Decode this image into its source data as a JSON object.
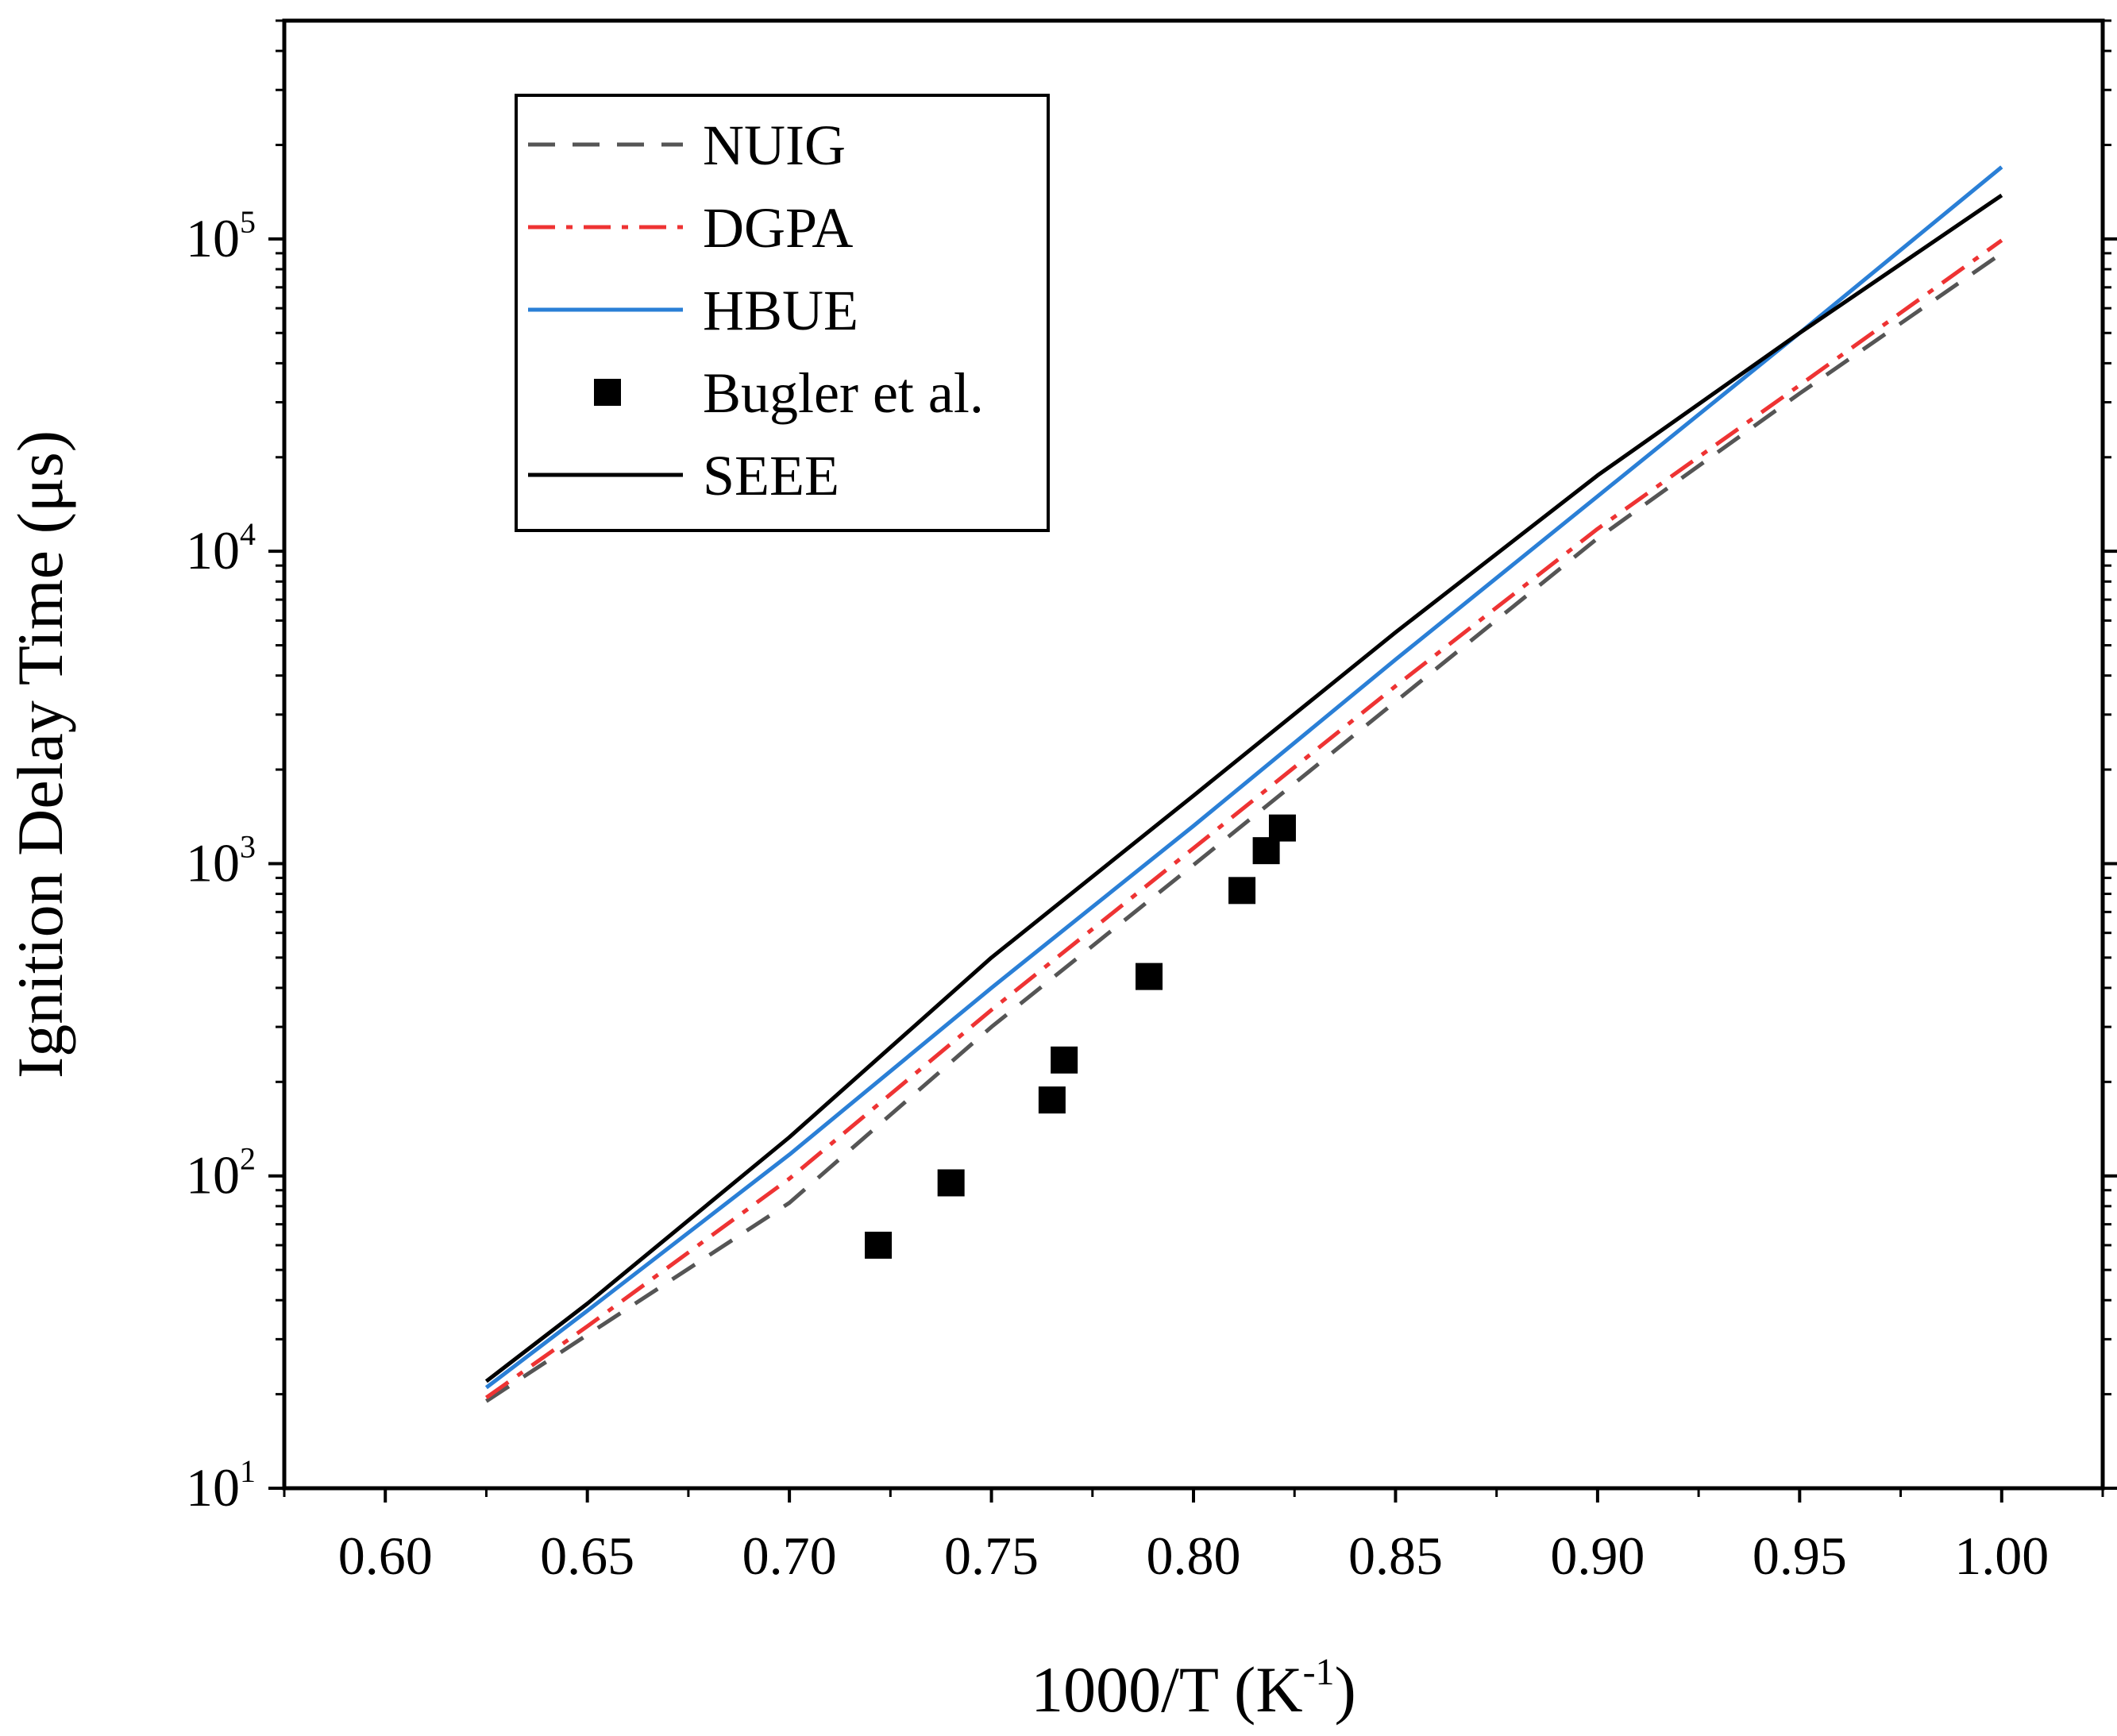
{
  "chart_data": {
    "type": "line",
    "xlabel": "1000/T (K",
    "xlabel_sup": "-1",
    "xlabel_close": ")",
    "ylabel": "Ignition Delay Time (μs)",
    "xlim": [
      0.575,
      1.025
    ],
    "ylim": [
      10,
      500000
    ],
    "yscale": "log",
    "x_ticks": [
      "0.60",
      "0.65",
      "0.70",
      "0.75",
      "0.80",
      "0.85",
      "0.90",
      "0.95",
      "1.00"
    ],
    "x_tick_values": [
      0.6,
      0.65,
      0.7,
      0.75,
      0.8,
      0.85,
      0.9,
      0.95,
      1.0
    ],
    "y_ticks": [
      {
        "value": 10,
        "base": "10",
        "exp": "1"
      },
      {
        "value": 100,
        "base": "10",
        "exp": "2"
      },
      {
        "value": 1000,
        "base": "10",
        "exp": "3"
      },
      {
        "value": 10000,
        "base": "10",
        "exp": "4"
      },
      {
        "value": 100000,
        "base": "10",
        "exp": "5"
      }
    ],
    "legend_position": "top-left",
    "series": [
      {
        "name": "NUIG",
        "style": "dash",
        "color": "#555555",
        "x": [
          0.625,
          0.65,
          0.7,
          0.75,
          0.8,
          0.85,
          0.9,
          0.95,
          1.0
        ],
        "y": [
          19,
          31,
          82,
          300,
          990,
          3300,
          11000,
          32000,
          90000
        ]
      },
      {
        "name": "DGPA",
        "style": "dashdot",
        "color": "#ee3333",
        "x": [
          0.625,
          0.65,
          0.7,
          0.75,
          0.8,
          0.85,
          0.9,
          0.95,
          1.0
        ],
        "y": [
          19.5,
          33,
          98,
          340,
          1120,
          3700,
          11800,
          34000,
          99000
        ]
      },
      {
        "name": "HBUE",
        "style": "solid",
        "color": "#2a7fd6",
        "x": [
          0.625,
          0.65,
          0.7,
          0.75,
          0.8,
          0.85,
          0.9,
          0.95,
          1.0
        ],
        "y": [
          21,
          37,
          117,
          400,
          1320,
          4500,
          15000,
          50000,
          170000
        ]
      },
      {
        "name": "Bugler et al.",
        "style": "marker",
        "color": "#000000",
        "x": [
          0.722,
          0.74,
          0.765,
          0.768,
          0.789,
          0.812,
          0.818,
          0.822
        ],
        "y": [
          60,
          95,
          175,
          235,
          435,
          820,
          1100,
          1300
        ]
      },
      {
        "name": "SEEE",
        "style": "solid",
        "color": "#000000",
        "x": [
          0.625,
          0.65,
          0.7,
          0.75,
          0.8,
          0.85,
          0.9,
          0.95,
          1.0
        ],
        "y": [
          22,
          39,
          133,
          500,
          1650,
          5500,
          17500,
          50000,
          138000
        ]
      }
    ]
  }
}
